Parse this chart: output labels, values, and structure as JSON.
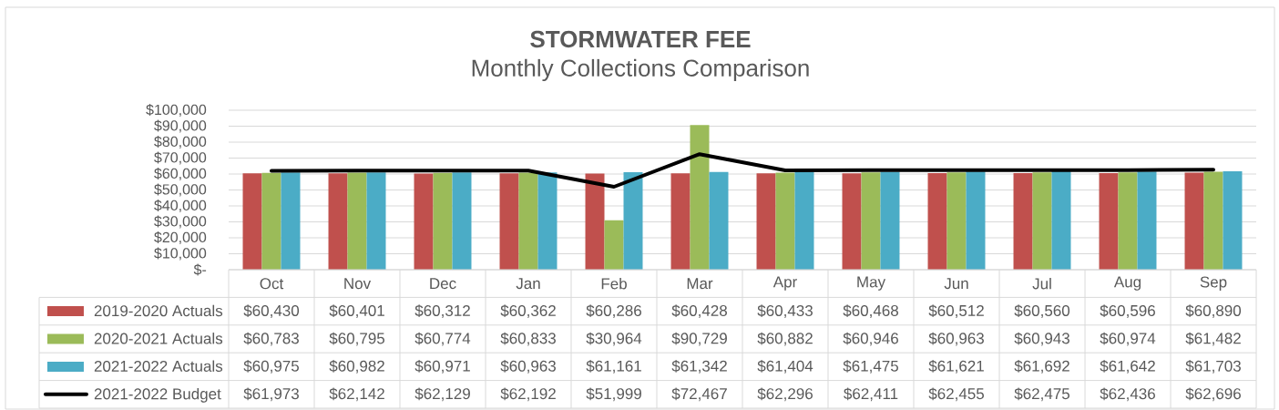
{
  "chart_data": {
    "type": "bar",
    "title": "STORMWATER FEE",
    "subtitle": "Monthly Collections Comparison",
    "categories": [
      "Oct",
      "Nov",
      "Dec",
      "Jan",
      "Feb",
      "Mar",
      "Apr",
      "May",
      "Jun",
      "Jul",
      "Aug",
      "Sep"
    ],
    "series": [
      {
        "name": "2019-2020 Actuals",
        "color": "#c0504d",
        "values": [
          60430,
          60401,
          60312,
          60362,
          60286,
          60428,
          60433,
          60468,
          60512,
          60560,
          60596,
          60890
        ],
        "value_labels": [
          "$60,430",
          "$60,401",
          "$60,312",
          "$60,362",
          "$60,286",
          "$60,428",
          "$60,433",
          "$60,468",
          "$60,512",
          "$60,560",
          "$60,596",
          "$60,890"
        ]
      },
      {
        "name": "2020-2021 Actuals",
        "color": "#9bbb59",
        "values": [
          60783,
          60795,
          60774,
          60833,
          30964,
          90729,
          60882,
          60946,
          60963,
          60943,
          60974,
          61482
        ],
        "value_labels": [
          "$60,783",
          "$60,795",
          "$60,774",
          "$60,833",
          "$30,964",
          "$90,729",
          "$60,882",
          "$60,946",
          "$60,963",
          "$60,943",
          "$60,974",
          "$61,482"
        ]
      },
      {
        "name": "2021-2022 Actuals",
        "color": "#4bacc6",
        "values": [
          60975,
          60982,
          60971,
          60963,
          61161,
          61342,
          61404,
          61475,
          61621,
          61692,
          61642,
          61703
        ],
        "value_labels": [
          "$60,975",
          "$60,982",
          "$60,971",
          "$60,963",
          "$61,161",
          "$61,342",
          "$61,404",
          "$61,475",
          "$61,621",
          "$61,692",
          "$61,642",
          "$61,703"
        ]
      },
      {
        "name": "2021-2022 Budget",
        "type": "line",
        "color": "#000000",
        "values": [
          61973,
          62142,
          62129,
          62192,
          51999,
          72467,
          62296,
          62411,
          62455,
          62475,
          62436,
          62696
        ],
        "value_labels": [
          "$61,973",
          "$62,142",
          "$62,129",
          "$62,192",
          "$51,999",
          "$72,467",
          "$62,296",
          "$62,411",
          "$62,455",
          "$62,475",
          "$62,436",
          "$62,696"
        ]
      }
    ],
    "ylim": [
      0,
      100000
    ],
    "yticks": [
      {
        "value": 0,
        "label": "$-"
      },
      {
        "value": 10000,
        "label": "$10,000"
      },
      {
        "value": 20000,
        "label": "$20,000"
      },
      {
        "value": 30000,
        "label": "$30,000"
      },
      {
        "value": 40000,
        "label": "$40,000"
      },
      {
        "value": 50000,
        "label": "$50,000"
      },
      {
        "value": 60000,
        "label": "$60,000"
      },
      {
        "value": 70000,
        "label": "$70,000"
      },
      {
        "value": 80000,
        "label": "$80,000"
      },
      {
        "value": 90000,
        "label": "$90,000"
      },
      {
        "value": 100000,
        "label": "$100,000"
      }
    ],
    "grid": "y",
    "legend": "bottom left"
  }
}
